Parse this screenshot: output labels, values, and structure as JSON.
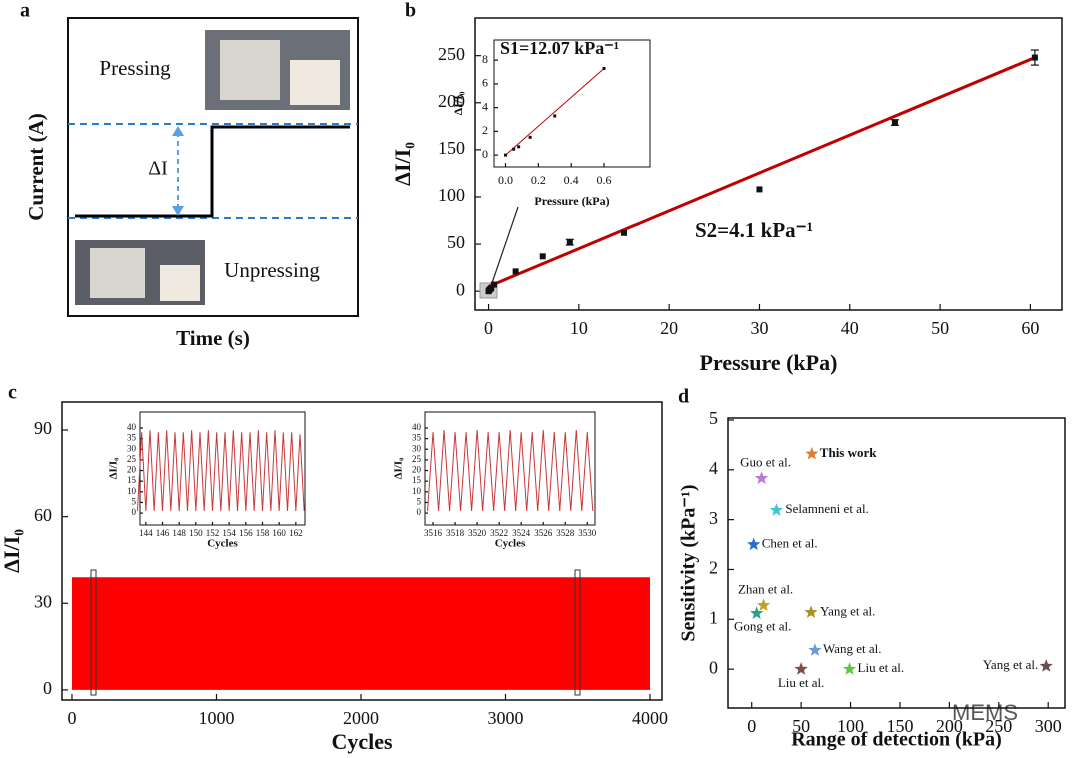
{
  "chart_data": [
    {
      "type": "schematic",
      "panel_label": "a",
      "xlabel": "Time (s)",
      "ylabel": "Current (A)",
      "top_label": "Pressing",
      "bottom_label": "Unpressing",
      "delta_label": "ΔI"
    },
    {
      "type": "scatter",
      "panel_label": "b",
      "xlabel": "Pressure (kPa)",
      "ylabel": "ΔI/I₀",
      "xlim": [
        -1.5,
        63.5
      ],
      "ylim": [
        -20,
        290
      ],
      "xticks": [
        0,
        10,
        20,
        30,
        40,
        50,
        60
      ],
      "yticks": [
        0,
        50,
        100,
        150,
        200,
        250
      ],
      "x": [
        0,
        0.05,
        0.15,
        0.3,
        0.6,
        3,
        6,
        9,
        15,
        30,
        45,
        60.5
      ],
      "values": [
        0,
        1,
        2,
        3,
        7,
        21,
        37,
        52,
        62,
        108,
        179,
        248
      ],
      "errors": [
        null,
        null,
        null,
        null,
        null,
        null,
        null,
        3,
        null,
        null,
        3,
        8
      ],
      "color": "#111111",
      "fit": {
        "x": [
          0,
          60.5
        ],
        "y": [
          5,
          248
        ]
      },
      "fit_color": "#c00000",
      "annotation": "S2=4.1 kPa⁻¹",
      "inset": {
        "xlabel": "Pressure (kPa)",
        "ylabel": "ΔI/I₀",
        "xlim": [
          -0.07,
          0.88
        ],
        "ylim": [
          -1,
          9.7
        ],
        "xticks": [
          {
            "value": 0,
            "label": "0.0"
          },
          0.2,
          0.4,
          0.6
        ],
        "yticks": [
          0,
          2,
          4,
          6,
          8
        ],
        "x": [
          0,
          0.05,
          0.08,
          0.15,
          0.3,
          0.6
        ],
        "values": [
          0,
          0.5,
          0.7,
          1.5,
          3.3,
          7.3
        ],
        "fit": {
          "x": [
            0,
            0.6
          ],
          "y": [
            0,
            7.3
          ]
        },
        "annotation": "S1=12.07 kPa⁻¹"
      }
    },
    {
      "type": "cycles",
      "panel_label": "c",
      "xlabel": "Cycles",
      "ylabel": "ΔI/I₀",
      "xlim": [
        -69,
        4083
      ],
      "ylim": [
        -3.5,
        99.7
      ],
      "xticks": [
        0,
        1000,
        2000,
        3000,
        4000
      ],
      "yticks": [
        0,
        30,
        60,
        90
      ],
      "color": "#ff0000",
      "band": {
        "x": [
          0,
          4000
        ],
        "low": [
          0,
          0
        ],
        "high": [
          39,
          39
        ]
      },
      "insets": [
        {
          "xlabel": "Cycles",
          "ylabel": "ΔI/I₀",
          "xlim": [
            143.3,
            163.1
          ],
          "ylim": [
            -5.6,
            47.5
          ],
          "xticks": [
            144,
            146,
            148,
            150,
            152,
            154,
            156,
            158,
            160,
            162
          ],
          "yticks": [
            0,
            5,
            10,
            15,
            20,
            25,
            30,
            35,
            40
          ],
          "x": [
            143,
            143.5,
            144,
            144.5,
            145,
            145.5,
            146,
            146.5,
            147,
            147.5,
            148,
            148.5,
            149,
            149.5,
            150,
            150.5,
            151,
            151.5,
            152,
            152.5,
            153,
            153.5,
            154,
            154.5,
            155,
            155.5,
            156,
            156.5,
            157,
            157.5,
            158,
            158.5,
            159,
            159.5,
            160,
            160.5,
            161,
            161.5,
            162,
            162.5,
            163
          ],
          "values": [
            1,
            38,
            1,
            39,
            1,
            38,
            1,
            39,
            1,
            38,
            1,
            38,
            1,
            39,
            1,
            38,
            1,
            39,
            1,
            38,
            1,
            38,
            1,
            39,
            1,
            38,
            1,
            38,
            1,
            39,
            1,
            38,
            1,
            39,
            1,
            38,
            1,
            38,
            1,
            37,
            1
          ]
        },
        {
          "xlabel": "Cycles",
          "ylabel": "ΔI/I₀",
          "xlim": [
            3515.27,
            3530.7
          ],
          "ylim": [
            -5.6,
            47.5
          ],
          "xticks": [
            3516,
            3518,
            3520,
            3522,
            3524,
            3526,
            3528,
            3530
          ],
          "yticks": [
            0,
            5,
            10,
            15,
            20,
            25,
            30,
            35,
            40
          ],
          "x": [
            3515.5,
            3516,
            3516.5,
            3517,
            3517.5,
            3518,
            3518.5,
            3519,
            3519.5,
            3520,
            3520.5,
            3521,
            3521.5,
            3522,
            3522.5,
            3523,
            3523.5,
            3524,
            3524.5,
            3525,
            3525.5,
            3526,
            3526.5,
            3527,
            3527.5,
            3528,
            3528.5,
            3529,
            3529.5,
            3530,
            3530.5
          ],
          "values": [
            1,
            38,
            1,
            39,
            1,
            38,
            1,
            38,
            1,
            39,
            1,
            38,
            1,
            38,
            1,
            39,
            1,
            38,
            1,
            38,
            1,
            39,
            1,
            38,
            1,
            38,
            1,
            39,
            1,
            38,
            1
          ]
        }
      ]
    },
    {
      "type": "stars",
      "panel_label": "d",
      "xlabel": "Range of detection (kPa)",
      "ylabel": "Sensitivity (kPa⁻¹)",
      "xlim": [
        -24,
        317
      ],
      "ylim": [
        -0.78,
        5.04
      ],
      "xticks": [
        0,
        50,
        100,
        150,
        200,
        250,
        300
      ],
      "yticks": [
        0,
        1,
        2,
        3,
        4,
        5
      ],
      "points": [
        {
          "name": "This work",
          "x": 60.8,
          "y": 4.32,
          "color": "#e07b39"
        },
        {
          "name": "Guo et al.",
          "x": 10,
          "y": 3.83,
          "color": "#b77ad6"
        },
        {
          "name": "Selamneni et al.",
          "x": 25,
          "y": 3.19,
          "color": "#3cc6d6"
        },
        {
          "name": "Chen et al.",
          "x": 2,
          "y": 2.5,
          "color": "#2a6fd0"
        },
        {
          "name": "Zhan et al.",
          "x": 12,
          "y": 1.28,
          "color": "#c0a020"
        },
        {
          "name": "Gong et al.",
          "x": 5,
          "y": 1.12,
          "color": "#2aa08a"
        },
        {
          "name": "Yang et al.",
          "x": 60,
          "y": 1.14,
          "color": "#a89422"
        },
        {
          "name": "Wang et al.",
          "x": 64,
          "y": 0.38,
          "color": "#6a9ad8"
        },
        {
          "name": "Liu et al.",
          "x": 99,
          "y": 0,
          "color": "#66c440"
        },
        {
          "name": "Liu et al.",
          "x": 50,
          "y": 0,
          "color": "#7a5040"
        },
        {
          "name": "Yang et al.",
          "x": 298,
          "y": 0.06,
          "color": "#6a5050"
        }
      ],
      "watermark": "MEMS"
    }
  ]
}
